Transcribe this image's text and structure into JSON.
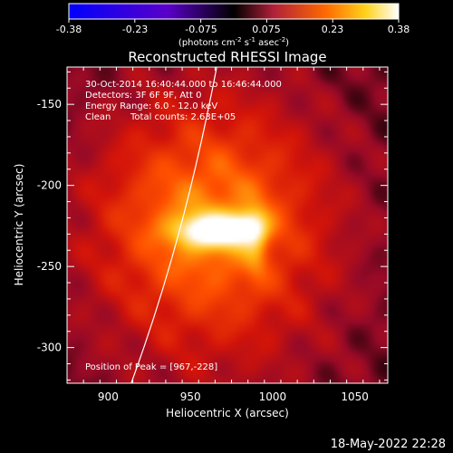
{
  "chart_data": {
    "type": "heatmap",
    "title": "Reconstructed RHESSI Image",
    "xlabel": "Heliocentric X (arcsec)",
    "ylabel": "Heliocentric Y (arcsec)",
    "xlim": [
      875,
      1070
    ],
    "ylim": [
      -322,
      -127
    ],
    "xticks": [
      900,
      950,
      1000,
      1050
    ],
    "yticks": [
      -150,
      -200,
      -250,
      -300
    ],
    "colorbar": {
      "min": -0.38,
      "max": 0.38,
      "ticks": [
        "-0.38",
        "-0.23",
        "-0.075",
        "0.075",
        "0.23",
        "0.38"
      ],
      "unit_prefix": "(photons cm",
      "unit_exp1": "-2",
      "unit_mid": " s",
      "unit_exp2": "-1",
      "unit_suffix": " asec",
      "unit_exp3": "-2",
      "unit_close": ")"
    },
    "annotations": {
      "time_range": "30-Oct-2014 16:40:44.000 to 16:46:44.000",
      "detectors": "Detectors: 3F 6F 9F, Att 0",
      "energy": "Energy Range: 6.0 - 12.0 keV",
      "clean_label": "Clean",
      "total_counts": "Total counts: 2.63E+05",
      "peak": "Position of Peak = [967,-228]"
    },
    "peak_position": [
      967,
      -228
    ],
    "limb_curve": [
      [
        914,
        -322
      ],
      [
        940,
        -250
      ],
      [
        955,
        -185
      ],
      [
        966,
        -127
      ]
    ],
    "sources": [
      {
        "x": 964,
        "y": -228,
        "sx": 16,
        "sy": 7,
        "amp": 0.22
      },
      {
        "x": 985,
        "y": -225,
        "sx": 8,
        "sy": 7,
        "amp": 0.12
      },
      {
        "x": 990,
        "y": -236,
        "sx": 5,
        "sy": 16,
        "amp": 0.06
      },
      {
        "x": 960,
        "y": -222,
        "sx": 45,
        "sy": 45,
        "amp": 0.14
      },
      {
        "x": 965,
        "y": -235,
        "sx": 60,
        "sy": 80,
        "amp": 0.07
      }
    ]
  },
  "footer": {
    "date": "18-May-2022 22:28"
  },
  "colors": {
    "background": "#000000",
    "axes": "#ffffff"
  }
}
